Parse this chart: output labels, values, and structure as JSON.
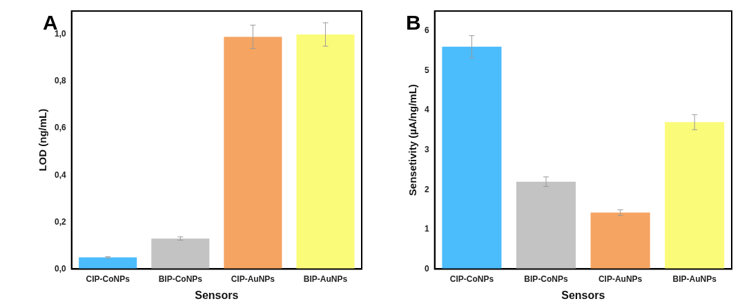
{
  "chart_data": [
    {
      "type": "bar",
      "title": "A",
      "xlabel": "Sensors",
      "ylabel": "LOD (ng/mL)",
      "categories": [
        "CIP-CoNPs",
        "BIP-CoNPs",
        "CIP-AuNPs",
        "BIP-AuNPs"
      ],
      "values": [
        0.05,
        0.13,
        0.99,
        1.0
      ],
      "errors": [
        0.003,
        0.007,
        0.05,
        0.05
      ],
      "colors": [
        "#4bbcfc",
        "#c3c3c3",
        "#f5a462",
        "#fbfb7a"
      ],
      "ylim": [
        0,
        1.1
      ],
      "yticks": [
        {
          "value": 0,
          "label": "0,0"
        },
        {
          "value": 0.2,
          "label": "0,2"
        },
        {
          "value": 0.4,
          "label": "0,4"
        },
        {
          "value": 0.6,
          "label": "0,6"
        },
        {
          "value": 0.8,
          "label": "0,8"
        },
        {
          "value": 1.0,
          "label": "1,0"
        }
      ],
      "grid": false,
      "legend": false
    },
    {
      "type": "bar",
      "title": "B",
      "xlabel": "Sensors",
      "ylabel": "Sensetivity (µA/ng/mL)",
      "categories": [
        "CIP-CoNPs",
        "BIP-CoNPs",
        "CIP-AuNPs",
        "BIP-AuNPs"
      ],
      "values": [
        5.6,
        2.2,
        1.42,
        3.7
      ],
      "errors": [
        0.28,
        0.12,
        0.07,
        0.19
      ],
      "colors": [
        "#4bbcfc",
        "#c3c3c3",
        "#f5a462",
        "#fbfb7a"
      ],
      "ylim": [
        0,
        6.5
      ],
      "yticks": [
        0,
        1,
        2,
        3,
        4,
        5,
        6
      ],
      "grid": false,
      "legend": false
    }
  ]
}
